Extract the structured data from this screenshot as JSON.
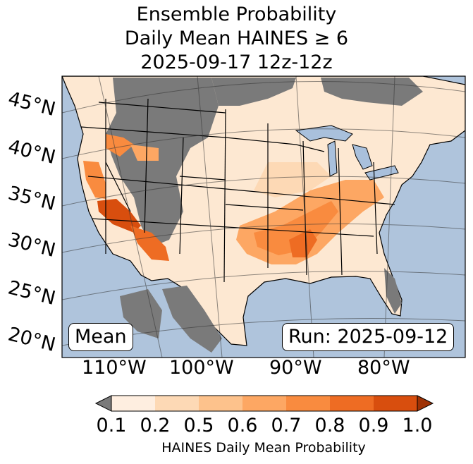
{
  "title": {
    "line1": "Ensemble Probability",
    "line2": "Daily Mean HAINES ≥ 6",
    "line3": "2025-09-17 12z-12z"
  },
  "map": {
    "lat_labels": [
      "45°N",
      "40°N",
      "35°N",
      "30°N",
      "25°N",
      "20°N"
    ],
    "lon_labels": [
      "110°W",
      "100°W",
      "90°W",
      "80°W"
    ],
    "left_box": "Mean",
    "right_box": "Run: 2025-09-12",
    "colors": {
      "ocean": "#afc4dc",
      "land_low": "#7a7a7a",
      "lake": "#a9c0dc"
    }
  },
  "colorbar": {
    "ticks": [
      "0.1",
      "0.2",
      "0.5",
      "0.6",
      "0.7",
      "0.8",
      "0.9",
      "1.0"
    ],
    "label": "HAINES Daily Mean Probability",
    "bins": [
      {
        "range": "0.1-0.2",
        "color": "#feeee0"
      },
      {
        "range": "0.2-0.5",
        "color": "#fdd9b5"
      },
      {
        "range": "0.5-0.6",
        "color": "#fdc28c"
      },
      {
        "range": "0.6-0.7",
        "color": "#fda763"
      },
      {
        "range": "0.7-0.8",
        "color": "#f98b3f"
      },
      {
        "range": "0.8-0.9",
        "color": "#ee6c23"
      },
      {
        "range": "0.9-1.0",
        "color": "#d84e0e"
      }
    ],
    "under_color": "#7a7a7a",
    "over_color": "#9e3205"
  }
}
